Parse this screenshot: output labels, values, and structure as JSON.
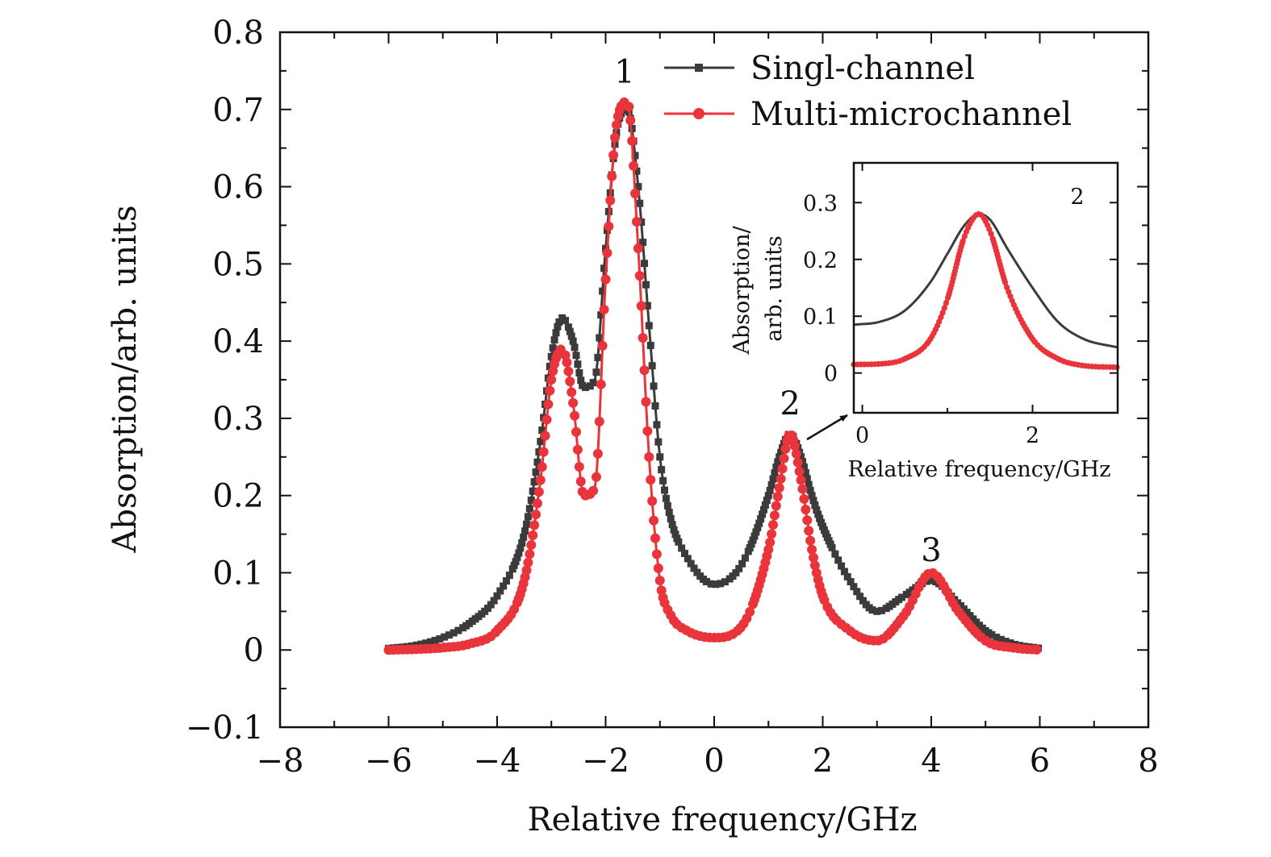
{
  "chart_data": [
    {
      "type": "line",
      "xlabel": "Relative frequency/GHz",
      "ylabel": "Absorption/arb. units",
      "xlim": [
        -8,
        8
      ],
      "ylim": [
        -0.1,
        0.8
      ],
      "x_ticks": [
        -8,
        -6,
        -4,
        -2,
        0,
        2,
        4,
        6,
        8
      ],
      "x_tick_labels": [
        "−8",
        "−6",
        "−4",
        "−2",
        "0",
        "2",
        "4",
        "6",
        "8"
      ],
      "y_ticks": [
        -0.1,
        0,
        0.1,
        0.2,
        0.3,
        0.4,
        0.5,
        0.6,
        0.7,
        0.8
      ],
      "y_tick_labels": [
        "−0.1",
        "0",
        "0.1",
        "0.2",
        "0.3",
        "0.4",
        "0.5",
        "0.6",
        "0.7",
        "0.8"
      ],
      "legend_position": "top-right",
      "x": [
        -6,
        -5.5,
        -5,
        -4.5,
        -4,
        -3.5,
        -3.2,
        -3,
        -2.8,
        -2.6,
        -2.4,
        -2.2,
        -2,
        -1.8,
        -1.6,
        -1.4,
        -1.2,
        -1,
        -0.8,
        -0.5,
        0,
        0.5,
        1,
        1.2,
        1.4,
        1.6,
        1.8,
        2,
        2.5,
        3,
        3.5,
        4,
        4.5,
        5,
        5.5,
        6
      ],
      "series": [
        {
          "name": "Singl-channel",
          "color": "#3b3b3b",
          "marker": "square",
          "values": [
            0.002,
            0.006,
            0.016,
            0.035,
            0.07,
            0.15,
            0.27,
            0.38,
            0.43,
            0.4,
            0.34,
            0.35,
            0.52,
            0.67,
            0.7,
            0.6,
            0.42,
            0.25,
            0.17,
            0.12,
            0.085,
            0.11,
            0.2,
            0.25,
            0.28,
            0.25,
            0.2,
            0.16,
            0.09,
            0.05,
            0.07,
            0.09,
            0.06,
            0.025,
            0.008,
            0.002
          ]
        },
        {
          "name": "Multi-microchannel",
          "color": "#e8343a",
          "marker": "circle",
          "values": [
            0.0,
            0.001,
            0.003,
            0.008,
            0.025,
            0.09,
            0.22,
            0.35,
            0.39,
            0.32,
            0.2,
            0.21,
            0.48,
            0.68,
            0.71,
            0.52,
            0.25,
            0.09,
            0.045,
            0.025,
            0.016,
            0.03,
            0.13,
            0.21,
            0.28,
            0.22,
            0.13,
            0.07,
            0.025,
            0.012,
            0.045,
            0.1,
            0.05,
            0.012,
            0.003,
            0.0
          ]
        }
      ],
      "annotations": [
        "1",
        "2",
        "3"
      ]
    },
    {
      "type": "line",
      "xlabel": "Relative frequency/GHz",
      "ylabel_lines": [
        "Absorption/",
        "arb. units"
      ],
      "annotation": "2",
      "xlim": [
        -0.1,
        3
      ],
      "ylim": [
        -0.07,
        0.37
      ],
      "x_ticks": [
        0,
        2
      ],
      "x_tick_labels": [
        "0",
        "2"
      ],
      "y_ticks": [
        0,
        0.1,
        0.2,
        0.3
      ],
      "y_tick_labels": [
        "0",
        "0.1",
        "0.2",
        "0.3"
      ],
      "x": [
        -0.1,
        0.2,
        0.5,
        0.8,
        1.0,
        1.2,
        1.37,
        1.5,
        1.7,
        2.0,
        2.3,
        2.6,
        3.0
      ],
      "series": [
        {
          "name": "Singl-channel",
          "color": "#3b3b3b",
          "values": [
            0.085,
            0.09,
            0.11,
            0.16,
            0.21,
            0.26,
            0.28,
            0.27,
            0.22,
            0.15,
            0.09,
            0.06,
            0.045
          ]
        },
        {
          "name": "Multi-microchannel",
          "color": "#e8343a",
          "values": [
            0.015,
            0.016,
            0.025,
            0.06,
            0.13,
            0.24,
            0.28,
            0.25,
            0.15,
            0.06,
            0.025,
            0.013,
            0.01
          ]
        }
      ]
    }
  ]
}
